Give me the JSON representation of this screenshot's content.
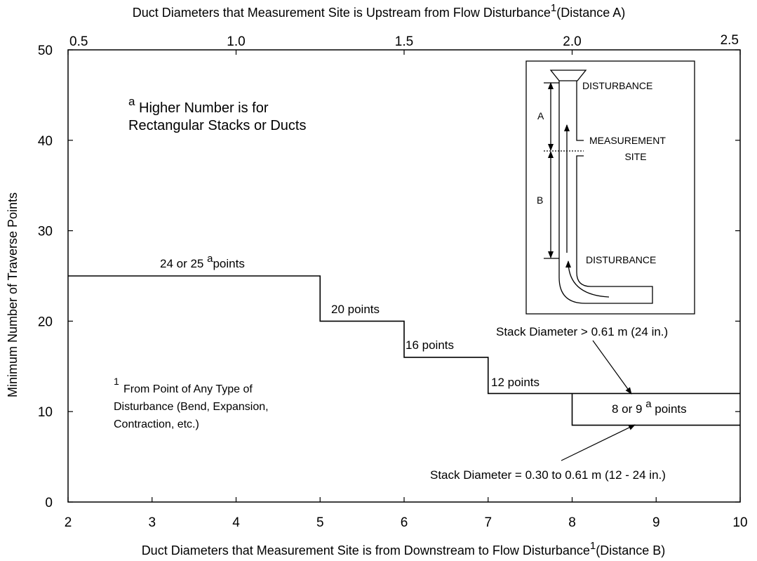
{
  "chart_data": {
    "type": "line",
    "x2label": {
      "text": "Duct Diameters that Measurement Site is Upstream from Flow Disturbance",
      "sup": "1",
      "suffix": "(Distance A)"
    },
    "xlabel": {
      "text": "Duct Diameters that Measurement Site is from Downstream to Flow Disturbance",
      "sup": "1",
      "suffix": "(Distance B)"
    },
    "ylabel": "Minimum Number of Traverse Points",
    "xlim": [
      2,
      10
    ],
    "xticks": [
      2,
      3,
      4,
      5,
      6,
      7,
      8,
      9,
      10
    ],
    "x2lim": [
      0.5,
      2.5
    ],
    "x2ticks": [
      0.5,
      {
        "value": 1.0,
        "label": "1.0"
      },
      1.5,
      {
        "value": 2.0,
        "label": "2.0"
      },
      2.5
    ],
    "ylim": [
      0,
      50
    ],
    "yticks": [
      0,
      10,
      20,
      30,
      40,
      50
    ],
    "grid": false,
    "series": [
      {
        "name": "Stack Diameter > 0.61 m (24 in.)",
        "color": "#000000",
        "x": [
          2,
          5,
          5,
          6,
          6,
          7,
          7,
          10
        ],
        "values": [
          25,
          25,
          20,
          20,
          16,
          16,
          12,
          12
        ]
      },
      {
        "name": "Stack Diameter = 0.30 to 0.61 m (12 - 24 in.)",
        "color": "#000000",
        "x": [
          8,
          8,
          10
        ],
        "values": [
          12,
          8.5,
          8.5
        ]
      }
    ],
    "annotations": {
      "step25": [
        "24 or 25 ",
        "a",
        "points"
      ],
      "step20": "20 points",
      "step16": "16 points",
      "step12": "12 points",
      "step8": [
        "8 or 9 ",
        "a",
        " points"
      ],
      "note_a": [
        "a",
        "Higher Number is for",
        "Rectangular Stacks or Ducts"
      ],
      "note_1": [
        "1",
        "From Point of Any Type of",
        "Disturbance (Bend, Expansion,",
        "Contraction, etc.)"
      ]
    },
    "inset": {
      "top": "DISTURBANCE",
      "a": "A",
      "site1": "MEASUREMENT",
      "site2": "SITE",
      "b": "B",
      "bottom": "DISTURBANCE"
    }
  }
}
